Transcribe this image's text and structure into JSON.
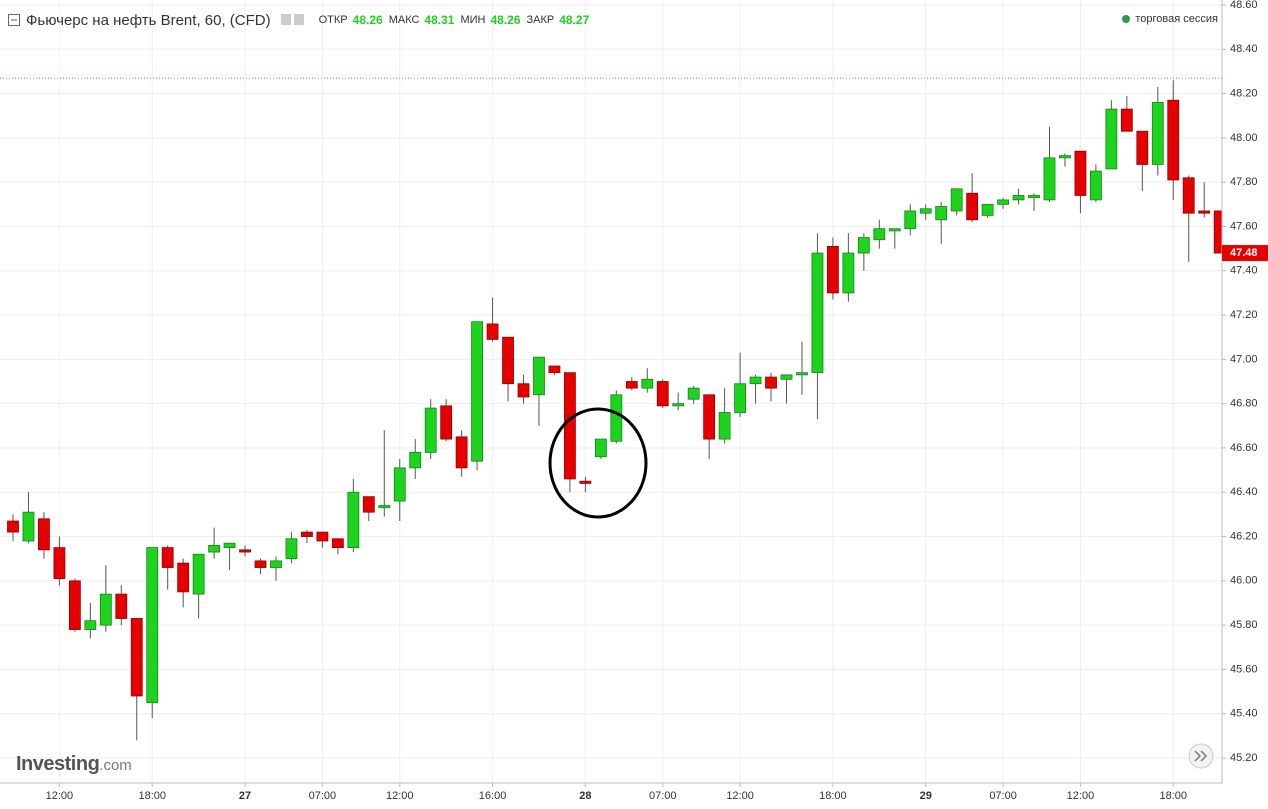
{
  "chart_data": {
    "type": "candlestick",
    "title": "Фьючерс на нефть Brent, 60, (CFD)",
    "stats": [
      {
        "label": "ОТКР",
        "value": 48.26
      },
      {
        "label": "МАКС",
        "value": 48.31
      },
      {
        "label": "МИН",
        "value": 48.26
      },
      {
        "label": "ЗАКР",
        "value": 48.27
      }
    ],
    "session_label": "торговая сессия",
    "brand": "Investing",
    "brand_suffix": ".com",
    "last_price": 47.48,
    "up_color": "#1ed31e",
    "down_color": "#e60000",
    "grid": true,
    "categories": [
      null,
      null,
      null,
      "12:00",
      null,
      null,
      null,
      null,
      null,
      "18:00",
      null,
      null,
      null,
      null,
      null,
      "27",
      null,
      null,
      null,
      null,
      "07:00",
      null,
      null,
      null,
      null,
      "12:00",
      null,
      null,
      null,
      null,
      null,
      "16:00",
      null,
      null,
      null,
      null,
      null,
      "28",
      null,
      null,
      null,
      null,
      "07:00",
      null,
      null,
      null,
      null,
      "12:00",
      null,
      null,
      null,
      null,
      null,
      "18:00",
      null,
      null,
      null,
      null,
      null,
      "29",
      null,
      null,
      null,
      null,
      "07:00",
      null,
      null,
      null,
      null,
      "12:00",
      null,
      null,
      null,
      null,
      null,
      "18:00",
      null,
      null,
      null
    ],
    "open": [
      46.27,
      46.18,
      46.28,
      46.15,
      46.0,
      45.78,
      45.8,
      45.94,
      45.83,
      45.45,
      46.15,
      46.08,
      45.94,
      46.13,
      46.15,
      46.14,
      46.09,
      46.06,
      46.1,
      46.22,
      46.22,
      46.19,
      46.15,
      46.38,
      46.33,
      46.36,
      46.51,
      46.58,
      46.79,
      46.65,
      46.54,
      47.16,
      47.1,
      46.89,
      46.84,
      46.97,
      46.94,
      46.45,
      46.56,
      46.63,
      46.9,
      46.87,
      46.9,
      46.79,
      46.82,
      46.84,
      46.64,
      46.76,
      46.89,
      46.92,
      46.91,
      46.93,
      46.94,
      47.51,
      47.3,
      47.48,
      47.54,
      47.58,
      47.59,
      47.66,
      47.63,
      47.67,
      47.75,
      47.65,
      47.7,
      47.72,
      47.73,
      47.72,
      47.91,
      47.94,
      47.72,
      47.86,
      48.13,
      48.03,
      47.88,
      48.17,
      47.82,
      47.67,
      47.67
    ],
    "high": [
      46.3,
      46.4,
      46.31,
      46.2,
      46.01,
      45.9,
      46.07,
      45.98,
      45.83,
      46.15,
      46.16,
      46.1,
      46.12,
      46.24,
      46.17,
      46.16,
      46.1,
      46.11,
      46.22,
      46.23,
      46.22,
      46.19,
      46.46,
      46.38,
      46.68,
      46.55,
      46.64,
      46.82,
      46.82,
      46.68,
      47.17,
      47.28,
      47.1,
      46.93,
      47.01,
      46.97,
      46.94,
      46.47,
      46.64,
      46.86,
      46.92,
      46.96,
      46.91,
      46.85,
      46.88,
      46.84,
      46.87,
      47.03,
      46.93,
      46.94,
      46.93,
      47.08,
      47.57,
      47.55,
      47.57,
      47.57,
      47.63,
      47.59,
      47.7,
      47.7,
      47.71,
      47.77,
      47.84,
      47.7,
      47.73,
      47.77,
      47.75,
      48.05,
      47.93,
      47.94,
      47.88,
      48.17,
      48.19,
      48.03,
      48.23,
      48.26,
      47.83,
      47.8,
      47.67
    ],
    "low": [
      46.18,
      46.17,
      46.1,
      45.98,
      45.77,
      45.74,
      45.77,
      45.8,
      45.28,
      45.38,
      45.96,
      45.88,
      45.83,
      46.1,
      46.05,
      46.11,
      46.03,
      46.0,
      46.08,
      46.17,
      46.15,
      46.12,
      46.13,
      46.27,
      46.29,
      46.27,
      46.46,
      46.55,
      46.63,
      46.47,
      46.5,
      47.08,
      46.81,
      46.8,
      46.7,
      46.93,
      46.4,
      46.4,
      46.55,
      46.62,
      46.86,
      46.85,
      46.78,
      46.77,
      46.8,
      46.55,
      46.62,
      46.74,
      46.8,
      46.81,
      46.8,
      46.84,
      46.73,
      47.27,
      47.26,
      47.4,
      47.5,
      47.5,
      47.56,
      47.63,
      47.52,
      47.65,
      47.62,
      47.64,
      47.68,
      47.7,
      47.67,
      47.71,
      47.87,
      47.66,
      47.71,
      47.86,
      48.03,
      47.76,
      47.83,
      47.72,
      47.44,
      47.64,
      47.48
    ],
    "close": [
      46.22,
      46.31,
      46.14,
      46.01,
      45.78,
      45.82,
      45.94,
      45.83,
      45.48,
      46.15,
      46.06,
      45.95,
      46.12,
      46.16,
      46.17,
      46.13,
      46.06,
      46.09,
      46.19,
      46.2,
      46.18,
      46.15,
      46.4,
      46.31,
      46.34,
      46.51,
      46.58,
      46.78,
      46.64,
      46.51,
      47.17,
      47.09,
      46.89,
      46.83,
      47.01,
      46.94,
      46.46,
      46.44,
      46.64,
      46.84,
      46.87,
      46.91,
      46.79,
      46.8,
      46.87,
      46.64,
      46.76,
      46.89,
      46.92,
      46.87,
      46.93,
      46.94,
      47.48,
      47.3,
      47.48,
      47.55,
      47.59,
      47.59,
      47.67,
      47.68,
      47.69,
      47.77,
      47.63,
      47.7,
      47.72,
      47.74,
      47.74,
      47.91,
      47.92,
      47.74,
      47.85,
      48.13,
      48.03,
      47.88,
      48.16,
      47.81,
      47.66,
      47.66,
      47.48
    ],
    "ylim": [
      45.2,
      48.6
    ],
    "yticks": [
      {
        "value": 45.2,
        "label": "45.20"
      },
      {
        "value": 45.4,
        "label": "45.40"
      },
      {
        "value": 45.6,
        "label": "45.60"
      },
      {
        "value": 45.8,
        "label": "45.80"
      },
      {
        "value": 46,
        "label": "46.00"
      },
      {
        "value": 46.2,
        "label": "46.20"
      },
      {
        "value": 46.4,
        "label": "46.40"
      },
      {
        "value": 46.6,
        "label": "46.60"
      },
      {
        "value": 46.8,
        "label": "46.80"
      },
      {
        "value": 47,
        "label": "47.00"
      },
      {
        "value": 47.2,
        "label": "47.20"
      },
      {
        "value": 47.4,
        "label": "47.40"
      },
      {
        "value": 47.6,
        "label": "47.60"
      },
      {
        "value": 47.8,
        "label": "47.80"
      },
      {
        "value": 48,
        "label": "48.00"
      },
      {
        "value": 48.2,
        "label": "48.20"
      },
      {
        "value": 48.4,
        "label": "48.40"
      },
      {
        "value": 48.6,
        "label": "48.60"
      }
    ]
  }
}
